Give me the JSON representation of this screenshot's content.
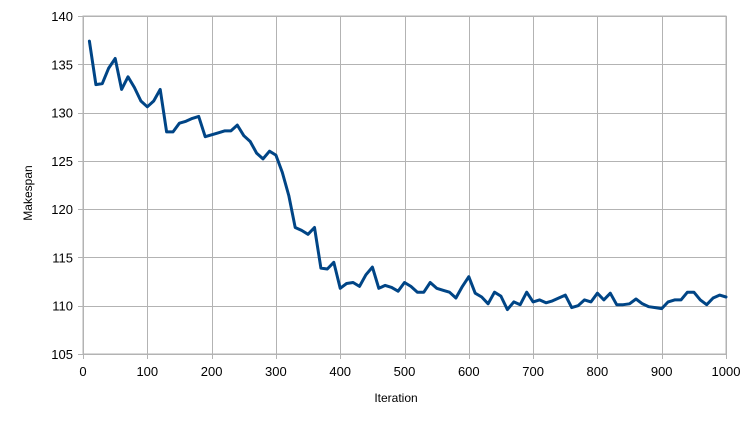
{
  "chart_data": {
    "type": "line",
    "title": "",
    "xlabel": "Iteration",
    "ylabel": "Makespan",
    "xlim": [
      0,
      1000
    ],
    "ylim": [
      105,
      140
    ],
    "x_ticks": [
      0,
      100,
      200,
      300,
      400,
      500,
      600,
      700,
      800,
      900,
      1000
    ],
    "y_ticks": [
      105,
      110,
      115,
      120,
      125,
      130,
      135,
      140
    ],
    "grid": true,
    "legend": "none",
    "series": [
      {
        "color": "#004586",
        "x": [
          10,
          20,
          30,
          40,
          50,
          60,
          70,
          80,
          90,
          100,
          110,
          120,
          130,
          140,
          150,
          160,
          170,
          180,
          190,
          200,
          210,
          220,
          230,
          240,
          250,
          260,
          270,
          280,
          290,
          300,
          310,
          320,
          330,
          340,
          350,
          360,
          370,
          380,
          390,
          400,
          410,
          420,
          430,
          440,
          450,
          460,
          470,
          480,
          490,
          500,
          510,
          520,
          530,
          540,
          550,
          560,
          570,
          580,
          590,
          600,
          610,
          620,
          630,
          640,
          650,
          660,
          670,
          680,
          690,
          700,
          710,
          720,
          730,
          740,
          750,
          760,
          770,
          780,
          790,
          800,
          810,
          820,
          830,
          840,
          850,
          860,
          870,
          880,
          890,
          900,
          910,
          920,
          930,
          940,
          950,
          960,
          970,
          980,
          990,
          1000
        ],
        "y": [
          137.4,
          132.9,
          133.0,
          134.6,
          135.6,
          132.4,
          133.7,
          132.6,
          131.2,
          130.6,
          131.2,
          132.4,
          128.0,
          128.0,
          128.9,
          129.1,
          129.4,
          129.6,
          127.5,
          127.7,
          127.9,
          128.1,
          128.1,
          128.7,
          127.6,
          127.0,
          125.8,
          125.2,
          126.0,
          125.6,
          123.8,
          121.4,
          118.1,
          117.8,
          117.4,
          118.1,
          113.9,
          113.8,
          114.5,
          111.8,
          112.3,
          112.4,
          112.0,
          113.2,
          114.0,
          111.8,
          112.1,
          111.9,
          111.5,
          112.4,
          112.0,
          111.4,
          111.4,
          112.4,
          111.8,
          111.6,
          111.4,
          110.8,
          112.0,
          113.0,
          111.3,
          110.9,
          110.2,
          111.4,
          111.0,
          109.6,
          110.4,
          110.1,
          111.4,
          110.4,
          110.6,
          110.3,
          110.5,
          110.8,
          111.1,
          109.8,
          110.0,
          110.6,
          110.4,
          111.3,
          110.6,
          111.3,
          110.1,
          110.1,
          110.2,
          110.7,
          110.2,
          109.9,
          109.8,
          109.7,
          110.4,
          110.6,
          110.6,
          111.4,
          111.4,
          110.6,
          110.1,
          110.8,
          111.1,
          110.9
        ]
      }
    ]
  }
}
